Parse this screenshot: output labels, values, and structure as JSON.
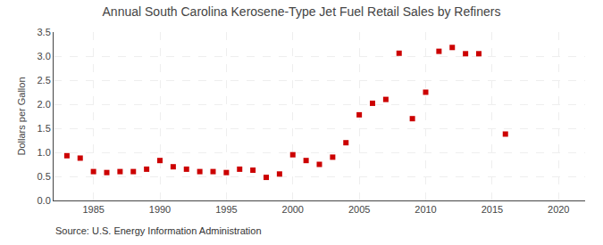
{
  "chart_data": {
    "type": "scatter",
    "title": "Annual South Carolina Kerosene-Type Jet Fuel Retail Sales by Refiners",
    "ylabel": "Dollars per Gallon",
    "annotations": [
      "Source: U.S. Energy Information Administration"
    ],
    "x": [
      1983,
      1984,
      1985,
      1986,
      1987,
      1988,
      1989,
      1990,
      1991,
      1992,
      1993,
      1994,
      1995,
      1996,
      1997,
      1998,
      1999,
      2000,
      2001,
      2002,
      2003,
      2004,
      2005,
      2006,
      2007,
      2008,
      2009,
      2010,
      2011,
      2012,
      2013,
      2014,
      2016
    ],
    "values": [
      0.93,
      0.88,
      0.6,
      0.58,
      0.6,
      0.6,
      0.65,
      0.83,
      0.7,
      0.65,
      0.6,
      0.6,
      0.58,
      0.65,
      0.63,
      0.48,
      0.55,
      0.95,
      0.83,
      0.75,
      0.9,
      1.2,
      1.78,
      2.02,
      2.1,
      3.06,
      1.7,
      2.25,
      3.1,
      3.18,
      3.05,
      3.05,
      1.38
    ],
    "color": "#cc0000",
    "marker": "square",
    "xlim": [
      1982,
      2022
    ],
    "xticks": [
      1985,
      1990,
      1995,
      2000,
      2005,
      2010,
      2015,
      2020
    ],
    "ylim": [
      0.0,
      3.5
    ],
    "yticks": [
      {
        "value": 0.0,
        "label": "0.0"
      },
      0.5,
      {
        "value": 1.0,
        "label": "1.0"
      },
      1.5,
      {
        "value": 2.0,
        "label": "2.0"
      },
      2.5,
      {
        "value": 3.0,
        "label": "3.0"
      },
      3.5
    ],
    "grid": true
  }
}
